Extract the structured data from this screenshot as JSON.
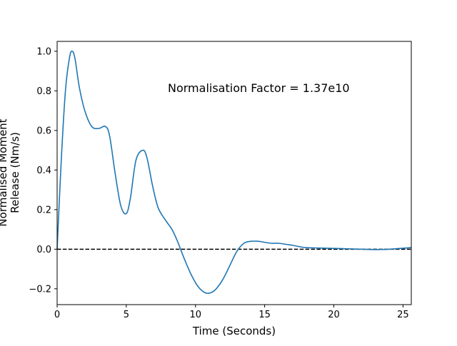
{
  "chart_data": {
    "type": "line",
    "title": "",
    "xlabel": "Time (Seconds)",
    "ylabel_line1": "Normalised Moment",
    "ylabel_line2": "Release (Nm/s)",
    "annotation": "Normalisation Factor = 1.37e10",
    "xlim": [
      0,
      25.6
    ],
    "ylim": [
      -0.28,
      1.05
    ],
    "x_ticks": [
      0,
      5,
      10,
      15,
      20,
      25
    ],
    "y_ticks": [
      -0.2,
      0.0,
      0.2,
      0.4,
      0.6,
      0.8,
      1.0
    ],
    "x_tick_labels": [
      "0",
      "5",
      "10",
      "15",
      "20",
      "25"
    ],
    "y_tick_labels": [
      "−0.2",
      "0.0",
      "0.2",
      "0.4",
      "0.6",
      "0.8",
      "1.0"
    ],
    "reference_line": {
      "y": 0.0,
      "style": "dashed",
      "color": "#000000"
    },
    "grid": false,
    "series": [
      {
        "color": "#1f77b4",
        "x": [
          0,
          0.3,
          0.6,
          0.9,
          1.1,
          1.3,
          1.6,
          2.0,
          2.5,
          3.0,
          3.5,
          3.8,
          4.2,
          4.6,
          5.0,
          5.3,
          5.7,
          6.2,
          6.5,
          6.9,
          7.3,
          7.8,
          8.3,
          8.7,
          9.2,
          9.7,
          10.2,
          10.7,
          11.1,
          11.5,
          12.0,
          12.5,
          13.0,
          13.5,
          14.0,
          14.5,
          15.0,
          15.5,
          16.0,
          16.5,
          17.0,
          17.5,
          18.0,
          19.0,
          20.0,
          21.0,
          22.0,
          23.0,
          24.0,
          25.0,
          25.6
        ],
        "y": [
          0.0,
          0.45,
          0.8,
          0.97,
          1.0,
          0.96,
          0.82,
          0.7,
          0.62,
          0.61,
          0.62,
          0.57,
          0.38,
          0.22,
          0.18,
          0.26,
          0.45,
          0.5,
          0.46,
          0.32,
          0.21,
          0.15,
          0.1,
          0.04,
          -0.05,
          -0.13,
          -0.19,
          -0.22,
          -0.22,
          -0.2,
          -0.15,
          -0.08,
          -0.01,
          0.03,
          0.04,
          0.04,
          0.035,
          0.03,
          0.03,
          0.025,
          0.02,
          0.013,
          0.008,
          0.006,
          0.004,
          0.002,
          0.0,
          -0.002,
          0.0,
          0.005,
          0.008
        ]
      }
    ]
  }
}
